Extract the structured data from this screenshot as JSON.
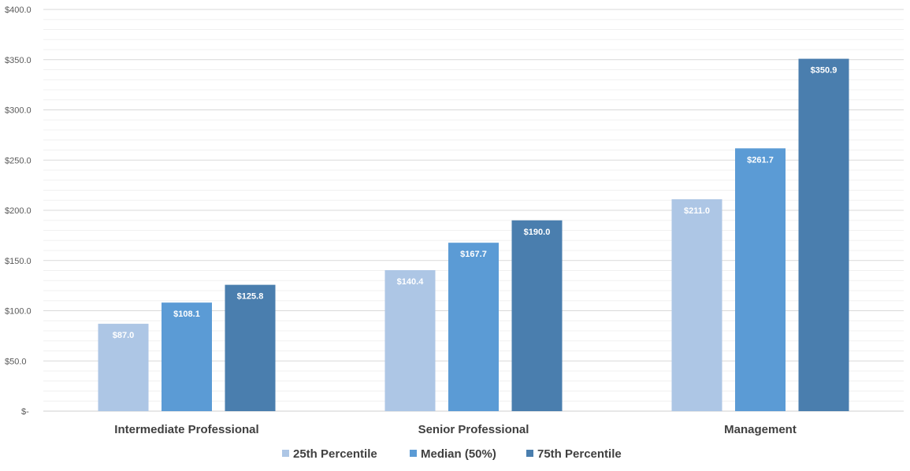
{
  "chart_data": {
    "type": "bar",
    "categories": [
      "Intermediate Professional",
      "Senior Professional",
      "Management"
    ],
    "series": [
      {
        "name": "25th Percentile",
        "color": "#adc6e5",
        "values": [
          87.0,
          140.4,
          211.0
        ],
        "labels": [
          "$87.0",
          "$140.4",
          "$211.0"
        ]
      },
      {
        "name": "Median (50%)",
        "color": "#5b9bd5",
        "values": [
          108.1,
          167.7,
          261.7
        ],
        "labels": [
          "$108.1",
          "$167.7",
          "$261.7"
        ]
      },
      {
        "name": "75th Percentile",
        "color": "#4a7eae",
        "values": [
          125.8,
          190.0,
          350.9
        ],
        "labels": [
          "$125.8",
          "$190.0",
          "$350.9"
        ]
      }
    ],
    "ylim": [
      0,
      400
    ],
    "yticks": [
      0,
      50,
      100,
      150,
      200,
      250,
      300,
      350,
      400
    ],
    "ytick_labels": [
      "$-",
      "$50.0",
      "$100.0",
      "$150.0",
      "$200.0",
      "$250.0",
      "$300.0",
      "$350.0",
      "$400.0"
    ],
    "minor_grid_step": 10,
    "grid": true,
    "legend_position": "bottom",
    "title": "",
    "xlabel": "",
    "ylabel": ""
  }
}
